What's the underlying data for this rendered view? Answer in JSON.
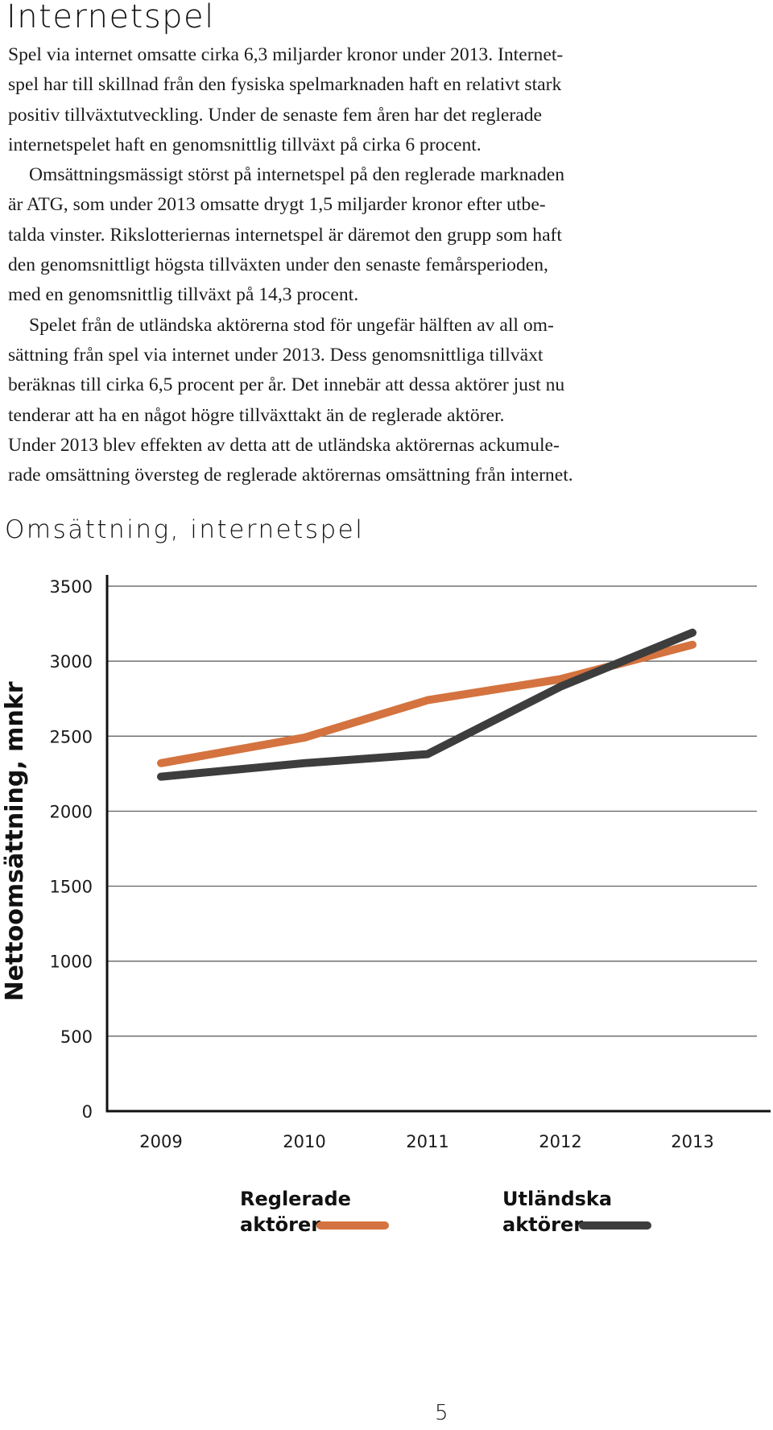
{
  "page": {
    "heading": "Internetspel",
    "paragraphs": [
      "Spel via internet omsatte cirka 6,3 miljarder kronor under 2013. Internet-",
      "spel har till skillnad från den fysiska spelmarknaden haft en relativt stark",
      "positiv tillväxtutveckling. Under de senaste fem åren har det reglerade",
      "internetspelet haft en genomsnittlig tillväxt på cirka 6 procent.",
      "Omsättningsmässigt störst på internetspel på den reglerade marknaden",
      "är ATG, som under 2013 omsatte drygt 1,5 miljarder kronor efter utbe-",
      "talda vinster. Rikslotteriernas internetspel är däremot den grupp som haft",
      "den genomsnittligt högsta tillväxten under den senaste femårsperioden,",
      "med en genomsnittlig tillväxt på 14,3 procent.",
      "Spelet från de utländska aktörerna stod för ungefär hälften av all om-",
      "sättning från spel via internet under 2013. Dess genomsnittliga tillväxt",
      "beräknas till cirka 6,5 procent per år. Det innebär att dessa aktörer just nu",
      "tenderar att ha en något högre tillväxttakt än de reglerade aktörer.",
      "Under 2013 blev effekten av detta att de utländska aktörernas ackumule-",
      "rade omsättning översteg de reglerade aktörernas omsättning från internet."
    ],
    "page_number": "5"
  },
  "chart_data": {
    "type": "line",
    "title": "Omsättning, internetspel",
    "ylabel": "Nettoomsättning, mnkr",
    "xlabel": "",
    "categories": [
      "2009",
      "2010",
      "2011",
      "2012",
      "2013"
    ],
    "ylim": [
      0,
      3500
    ],
    "yticks": [
      "0",
      "500",
      "1000",
      "1500",
      "2000",
      "2500",
      "3000",
      "3500"
    ],
    "grid": true,
    "legend_position": "bottom",
    "series": [
      {
        "name": "Reglerade aktörer",
        "legend_lines": [
          "Reglerade",
          "aktörer"
        ],
        "color": "#d4733f",
        "values": [
          2320,
          2490,
          2740,
          2880,
          3110
        ]
      },
      {
        "name": "Utländska aktörer",
        "legend_lines": [
          "Utländska",
          "aktörer"
        ],
        "color": "#3d3d3d",
        "values": [
          2230,
          2320,
          2380,
          2830,
          3190
        ]
      }
    ]
  }
}
